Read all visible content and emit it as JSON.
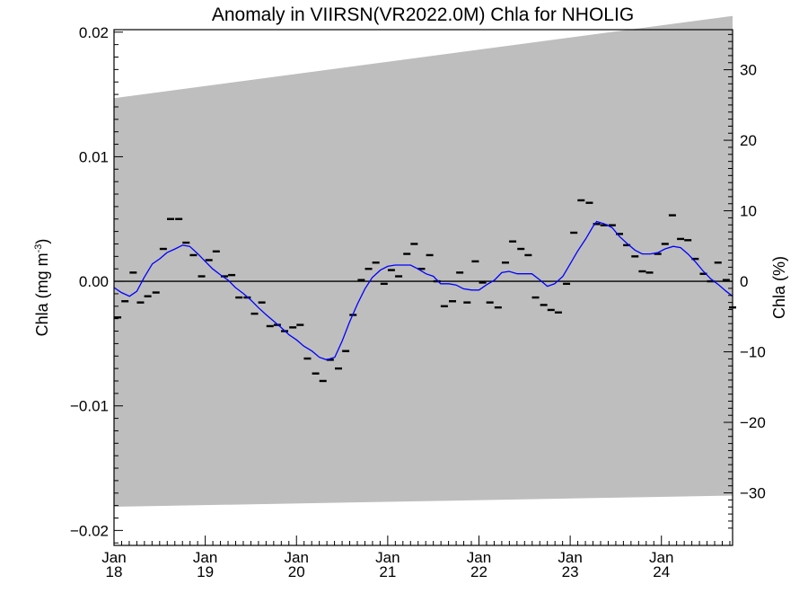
{
  "chart_data": {
    "type": "line",
    "title": "Anomaly in VIIRSN(VR2022.0M) Chla for NHOLIG",
    "ylabel_left": "Chla (mg m",
    "ylabel_left_sup": "-3",
    "ylabel_left_close": ")",
    "ylabel_right": "Chla (%)",
    "xlim": [
      2018.0,
      2024.78
    ],
    "ylim": [
      -0.0212,
      0.0202
    ],
    "ylim_right": [
      -35,
      35
    ],
    "left_ticks": [
      {
        "v": 0.02,
        "label": "0.02"
      },
      {
        "v": 0.01,
        "label": "0.01"
      },
      {
        "v": 0.0,
        "label": "0.00"
      },
      {
        "v": -0.01,
        "label": "−0.01"
      },
      {
        "v": -0.02,
        "label": "−0.02"
      }
    ],
    "right_ticks": [
      {
        "v": 30,
        "label": "30"
      },
      {
        "v": 20,
        "label": "20"
      },
      {
        "v": 10,
        "label": "10"
      },
      {
        "v": 0,
        "label": "0"
      },
      {
        "v": -10,
        "label": "−10"
      },
      {
        "v": -20,
        "label": "−20"
      },
      {
        "v": -30,
        "label": "−30"
      }
    ],
    "x_ticks": [
      {
        "x": 2018.0,
        "month": "Jan",
        "year": "18"
      },
      {
        "x": 2019.0,
        "month": "Jan",
        "year": "19"
      },
      {
        "x": 2020.0,
        "month": "Jan",
        "year": "20"
      },
      {
        "x": 2021.0,
        "month": "Jan",
        "year": "21"
      },
      {
        "x": 2022.0,
        "month": "Jan",
        "year": "22"
      },
      {
        "x": 2023.0,
        "month": "Jan",
        "year": "23"
      },
      {
        "x": 2024.0,
        "month": "Jan",
        "year": "24"
      }
    ],
    "uncertainty_band": {
      "color": "#bebebe",
      "upper": [
        [
          2018.0,
          0.0147
        ],
        [
          2024.78,
          0.0213
        ]
      ],
      "lower": [
        [
          2018.0,
          -0.0181
        ],
        [
          2024.78,
          -0.0172
        ]
      ]
    },
    "series": [
      {
        "kind": "monthly_anomaly",
        "color": "#000000",
        "points": [
          [
            2018.04,
            -0.0029
          ],
          [
            2018.12,
            -0.0016
          ],
          [
            2018.21,
            0.0007
          ],
          [
            2018.29,
            -0.0017
          ],
          [
            2018.37,
            -0.0012
          ],
          [
            2018.46,
            -0.0009
          ],
          [
            2018.54,
            0.0026
          ],
          [
            2018.62,
            0.005
          ],
          [
            2018.71,
            0.005
          ],
          [
            2018.79,
            0.0031
          ],
          [
            2018.87,
            0.0021
          ],
          [
            2018.96,
            0.0004
          ],
          [
            2019.04,
            0.0017
          ],
          [
            2019.12,
            0.0024
          ],
          [
            2019.21,
            0.0004
          ],
          [
            2019.29,
            0.0005
          ],
          [
            2019.37,
            -0.0013
          ],
          [
            2019.46,
            -0.0013
          ],
          [
            2019.54,
            -0.0026
          ],
          [
            2019.62,
            -0.0017
          ],
          [
            2019.71,
            -0.0036
          ],
          [
            2019.79,
            -0.0035
          ],
          [
            2019.87,
            -0.004
          ],
          [
            2019.96,
            -0.0037
          ],
          [
            2020.04,
            -0.0035
          ],
          [
            2020.12,
            -0.0062
          ],
          [
            2020.21,
            -0.0074
          ],
          [
            2020.29,
            -0.008
          ],
          [
            2020.37,
            -0.0063
          ],
          [
            2020.46,
            -0.007
          ],
          [
            2020.54,
            -0.0056
          ],
          [
            2020.62,
            -0.0027
          ],
          [
            2020.71,
            0.0001
          ],
          [
            2020.79,
            0.001
          ],
          [
            2020.87,
            0.0015
          ],
          [
            2020.96,
            -0.0002
          ],
          [
            2021.04,
            0.0009
          ],
          [
            2021.12,
            0.0004
          ],
          [
            2021.21,
            0.0022
          ],
          [
            2021.29,
            0.003
          ],
          [
            2021.37,
            0.001
          ],
          [
            2021.46,
            0.0021
          ],
          [
            2021.54,
            0.0
          ],
          [
            2021.62,
            -0.002
          ],
          [
            2021.71,
            -0.0016
          ],
          [
            2021.79,
            0.0007
          ],
          [
            2021.87,
            -0.0017
          ],
          [
            2021.96,
            0.0016
          ],
          [
            2022.04,
            -0.0001
          ],
          [
            2022.12,
            -0.0017
          ],
          [
            2022.21,
            -0.0021
          ],
          [
            2022.29,
            0.0015
          ],
          [
            2022.37,
            0.0032
          ],
          [
            2022.46,
            0.0026
          ],
          [
            2022.54,
            0.0021
          ],
          [
            2022.62,
            -0.0013
          ],
          [
            2022.71,
            -0.0019
          ],
          [
            2022.79,
            -0.0023
          ],
          [
            2022.87,
            -0.0025
          ],
          [
            2022.96,
            -0.0002
          ],
          [
            2023.04,
            0.0039
          ],
          [
            2023.12,
            0.0065
          ],
          [
            2023.21,
            0.0063
          ],
          [
            2023.29,
            0.0046
          ],
          [
            2023.37,
            0.0045
          ],
          [
            2023.46,
            0.0045
          ],
          [
            2023.54,
            0.0038
          ],
          [
            2023.62,
            0.0029
          ],
          [
            2023.71,
            0.002
          ],
          [
            2023.79,
            0.0008
          ],
          [
            2023.87,
            0.0007
          ],
          [
            2023.96,
            0.0022
          ],
          [
            2024.04,
            0.003
          ],
          [
            2024.12,
            0.0053
          ],
          [
            2024.21,
            0.0034
          ],
          [
            2024.29,
            0.0033
          ],
          [
            2024.37,
            0.0018
          ],
          [
            2024.46,
            0.0006
          ],
          [
            2024.54,
            0.0
          ],
          [
            2024.62,
            0.0015
          ],
          [
            2024.71,
            0.0001
          ],
          [
            2024.78,
            -0.0021
          ]
        ]
      },
      {
        "kind": "smoothed_anomaly",
        "color": "#0000ff",
        "points": [
          [
            2018.0,
            -0.0005
          ],
          [
            2018.08,
            -0.0009
          ],
          [
            2018.17,
            -0.0012
          ],
          [
            2018.25,
            -0.0008
          ],
          [
            2018.33,
            0.0003
          ],
          [
            2018.42,
            0.0014
          ],
          [
            2018.5,
            0.0018
          ],
          [
            2018.58,
            0.0023
          ],
          [
            2018.67,
            0.0026
          ],
          [
            2018.75,
            0.0029
          ],
          [
            2018.83,
            0.0028
          ],
          [
            2018.92,
            0.0022
          ],
          [
            2019.0,
            0.0016
          ],
          [
            2019.08,
            0.001
          ],
          [
            2019.17,
            0.0005
          ],
          [
            2019.25,
            0.0001
          ],
          [
            2019.33,
            -0.0005
          ],
          [
            2019.42,
            -0.001
          ],
          [
            2019.5,
            -0.0015
          ],
          [
            2019.58,
            -0.0021
          ],
          [
            2019.67,
            -0.0027
          ],
          [
            2019.75,
            -0.0032
          ],
          [
            2019.83,
            -0.0037
          ],
          [
            2019.92,
            -0.0043
          ],
          [
            2020.0,
            -0.0047
          ],
          [
            2020.08,
            -0.0052
          ],
          [
            2020.17,
            -0.0056
          ],
          [
            2020.25,
            -0.0061
          ],
          [
            2020.33,
            -0.0063
          ],
          [
            2020.42,
            -0.0061
          ],
          [
            2020.5,
            -0.0048
          ],
          [
            2020.58,
            -0.0033
          ],
          [
            2020.67,
            -0.0018
          ],
          [
            2020.75,
            -0.0006
          ],
          [
            2020.83,
            0.0003
          ],
          [
            2020.92,
            0.0009
          ],
          [
            2021.0,
            0.0012
          ],
          [
            2021.08,
            0.0013
          ],
          [
            2021.17,
            0.0013
          ],
          [
            2021.25,
            0.0013
          ],
          [
            2021.33,
            0.001
          ],
          [
            2021.42,
            0.0006
          ],
          [
            2021.5,
            0.0004
          ],
          [
            2021.58,
            -0.0002
          ],
          [
            2021.67,
            -0.0002
          ],
          [
            2021.75,
            -0.0003
          ],
          [
            2021.83,
            -0.0006
          ],
          [
            2021.92,
            -0.0007
          ],
          [
            2022.0,
            -0.0007
          ],
          [
            2022.08,
            -0.0003
          ],
          [
            2022.17,
            0.0001
          ],
          [
            2022.25,
            0.0007
          ],
          [
            2022.33,
            0.0008
          ],
          [
            2022.42,
            0.0006
          ],
          [
            2022.5,
            0.0006
          ],
          [
            2022.58,
            0.0006
          ],
          [
            2022.67,
            0.0001
          ],
          [
            2022.75,
            -0.0004
          ],
          [
            2022.83,
            -0.0002
          ],
          [
            2022.92,
            0.0004
          ],
          [
            2023.0,
            0.0014
          ],
          [
            2023.08,
            0.0024
          ],
          [
            2023.17,
            0.0034
          ],
          [
            2023.25,
            0.0044
          ],
          [
            2023.29,
            0.0048
          ],
          [
            2023.38,
            0.0046
          ],
          [
            2023.46,
            0.0043
          ],
          [
            2023.54,
            0.0036
          ],
          [
            2023.63,
            0.003
          ],
          [
            2023.71,
            0.0025
          ],
          [
            2023.79,
            0.0022
          ],
          [
            2023.88,
            0.0022
          ],
          [
            2023.96,
            0.0023
          ],
          [
            2024.04,
            0.0026
          ],
          [
            2024.13,
            0.0028
          ],
          [
            2024.21,
            0.0027
          ],
          [
            2024.29,
            0.0022
          ],
          [
            2024.38,
            0.0015
          ],
          [
            2024.46,
            0.0008
          ],
          [
            2024.54,
            0.0002
          ],
          [
            2024.63,
            -0.0003
          ],
          [
            2024.71,
            -0.0008
          ],
          [
            2024.78,
            -0.0012
          ]
        ]
      }
    ],
    "zero_line": true,
    "grid": false
  }
}
